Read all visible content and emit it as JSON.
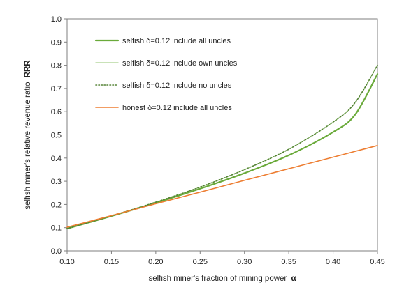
{
  "chart_data": {
    "type": "line",
    "title": "",
    "xlabel": "selfish miner's fraction of mining power",
    "xlabel_symbol": "α",
    "ylabel": "selfish miner's relative revenue ratio",
    "ylabel_symbol": "RRR",
    "xlim": [
      0.1,
      0.45
    ],
    "ylim": [
      0.0,
      1.0
    ],
    "xticks": [
      "0.10",
      "0.15",
      "0.20",
      "0.25",
      "0.30",
      "0.35",
      "0.40",
      "0.45"
    ],
    "yticks": [
      "0.0",
      "0.1",
      "0.2",
      "0.3",
      "0.4",
      "0.5",
      "0.6",
      "0.7",
      "0.8",
      "0.9",
      "1.0"
    ],
    "grid": false,
    "legend_position": "top-left",
    "x": [
      0.1,
      0.15,
      0.2,
      0.25,
      0.3,
      0.35,
      0.4,
      0.425,
      0.45
    ],
    "series": [
      {
        "name": "selfish δ=0.12 include all uncles",
        "color": "#6aaa3a",
        "style": "solid-thick",
        "values": [
          0.096,
          0.15,
          0.207,
          0.268,
          0.335,
          0.412,
          0.512,
          0.588,
          0.762
        ]
      },
      {
        "name": "selfish δ=0.12 include own uncles",
        "color": "#a9d18e",
        "style": "solid-thin",
        "values": [
          0.096,
          0.151,
          0.21,
          0.275,
          0.35,
          0.438,
          0.555,
          0.64,
          0.8
        ]
      },
      {
        "name": "selfish δ=0.12 include no uncles",
        "color": "#548235",
        "style": "dotted",
        "values": [
          0.096,
          0.151,
          0.21,
          0.275,
          0.35,
          0.438,
          0.555,
          0.64,
          0.8
        ]
      },
      {
        "name": "honest δ=0.12 include all uncles",
        "color": "#ed7d31",
        "style": "solid",
        "values": [
          0.102,
          0.152,
          0.203,
          0.253,
          0.304,
          0.354,
          0.404,
          0.429,
          0.454
        ]
      }
    ]
  }
}
